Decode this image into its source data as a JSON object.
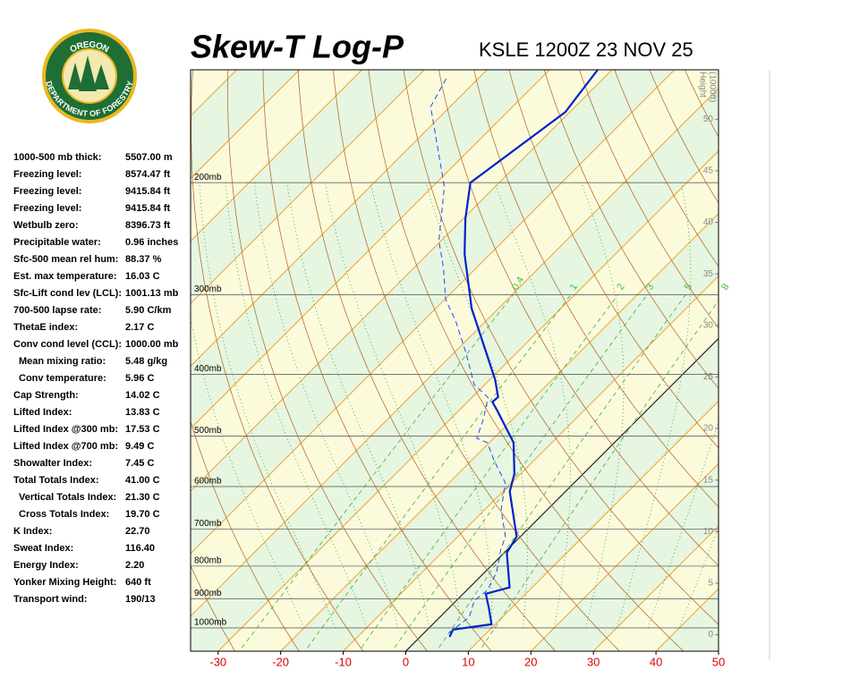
{
  "chart_data": {
    "type": "skewt",
    "title": "Skew-T Log-P",
    "subtitle": "KSLE 1200Z 23 NOV 25",
    "logo": {
      "top": "OREGON",
      "bottom": "DEPARTMENT OF FORESTRY"
    },
    "xlim": [
      -34.4,
      50
    ],
    "xticks": [
      -30,
      -20,
      -10,
      0,
      10,
      20,
      30,
      40,
      50
    ],
    "ylim": [
      1088,
      133
    ],
    "log_y": true,
    "yticks": [
      {
        "value": 200,
        "label": "200mb"
      },
      {
        "value": 300,
        "label": "300mb"
      },
      {
        "value": 400,
        "label": "400mb"
      },
      {
        "value": 500,
        "label": "500mb"
      },
      {
        "value": 600,
        "label": "600mb"
      },
      {
        "value": 700,
        "label": "700mb"
      },
      {
        "value": 800,
        "label": "800mb"
      },
      {
        "value": 900,
        "label": "900mb"
      },
      {
        "value": 1000,
        "label": "1000mb"
      }
    ],
    "y2label": [
      "Height",
      "(1000ft)"
    ],
    "y2lim": [
      -1.6,
      54.8
    ],
    "y2ticks": [
      0,
      5,
      10,
      15,
      20,
      25,
      30,
      35,
      40,
      45,
      50
    ],
    "mixing_ratios": [
      0.4,
      1,
      2,
      3,
      5,
      8
    ],
    "series": [
      {
        "color": "#0022cc",
        "style": "solid",
        "pressure": [
          1033,
          1006,
          987,
          931,
          884,
          864,
          762,
          719,
          611,
          573,
          512,
          457,
          442,
          434,
          408,
          315,
          259,
          228,
          200,
          155,
          133
        ],
        "values": [
          4.7,
          4.1,
          9.4,
          6.4,
          3.6,
          6.4,
          0.4,
          -0.6,
          -8.9,
          -11,
          -16.1,
          -23.7,
          -26,
          -25.9,
          -29.1,
          -44.3,
          -54.1,
          -59.6,
          -64.6,
          -60.7,
          -62.3
        ]
      },
      {
        "color": "#2244ff",
        "style": "dashed",
        "pressure": [
          1019,
          962,
          907,
          873,
          818,
          755,
          719,
          652,
          592,
          546,
          512,
          504,
          472,
          435,
          415,
          370,
          331,
          305,
          272,
          247,
          203,
          152,
          136
        ],
        "values": [
          4.0,
          4.7,
          2.9,
          3.3,
          1.9,
          -1,
          -2.4,
          -7.4,
          -11,
          -16.4,
          -20.3,
          -22.7,
          -24.6,
          -27.4,
          -31.7,
          -38.1,
          -44.6,
          -49.9,
          -55.3,
          -60.3,
          -68.1,
          -83.1,
          -85.3
        ]
      }
    ],
    "stats": [
      {
        "label": "1000-500 mb thick:",
        "value": "5507.00 m"
      },
      {
        "label": "Freezing level:",
        "value": "8574.47 ft"
      },
      {
        "label": "Freezing level:",
        "value": "9415.84 ft"
      },
      {
        "label": "Freezing level:",
        "value": "9415.84 ft"
      },
      {
        "label": "Wetbulb zero:",
        "value": "8396.73 ft"
      },
      {
        "label": "Precipitable water:",
        "value": "0.96 inches"
      },
      {
        "label": "Sfc-500 mean rel hum:",
        "value": "88.37 %"
      },
      {
        "label": "Est. max temperature:",
        "value": "16.03 C"
      },
      {
        "label": "Sfc-Lift cond lev (LCL):",
        "value": "1001.13 mb"
      },
      {
        "label": "700-500 lapse rate:",
        "value": "5.90 C/km"
      },
      {
        "label": "ThetaE index:",
        "value": "2.17 C"
      },
      {
        "label": "Conv cond level (CCL):",
        "value": "1000.00 mb"
      },
      {
        "label": "Mean mixing ratio:",
        "value": "5.48 g/kg",
        "indent": true
      },
      {
        "label": "Conv temperature:",
        "value": "5.96 C",
        "indent": true
      },
      {
        "label": "Cap Strength:",
        "value": "14.02 C"
      },
      {
        "label": "Lifted Index:",
        "value": "13.83 C"
      },
      {
        "label": "Lifted Index @300 mb:",
        "value": "17.53 C"
      },
      {
        "label": "Lifted Index @700 mb:",
        "value": "9.49 C"
      },
      {
        "label": "Showalter Index:",
        "value": "7.45 C"
      },
      {
        "label": "Total Totals Index:",
        "value": "41.00 C"
      },
      {
        "label": "Vertical Totals Index:",
        "value": "21.30 C",
        "indent": true
      },
      {
        "label": "Cross Totals Index:",
        "value": "19.70 C",
        "indent": true
      },
      {
        "label": "K Index:",
        "value": "22.70"
      },
      {
        "label": "Sweat Index:",
        "value": "116.40"
      },
      {
        "label": "Energy Index:",
        "value": "2.20"
      },
      {
        "label": "Yonker Mixing Height:",
        "value": "640 ft"
      },
      {
        "label": "Transport wind:",
        "value": "190/13"
      }
    ]
  }
}
